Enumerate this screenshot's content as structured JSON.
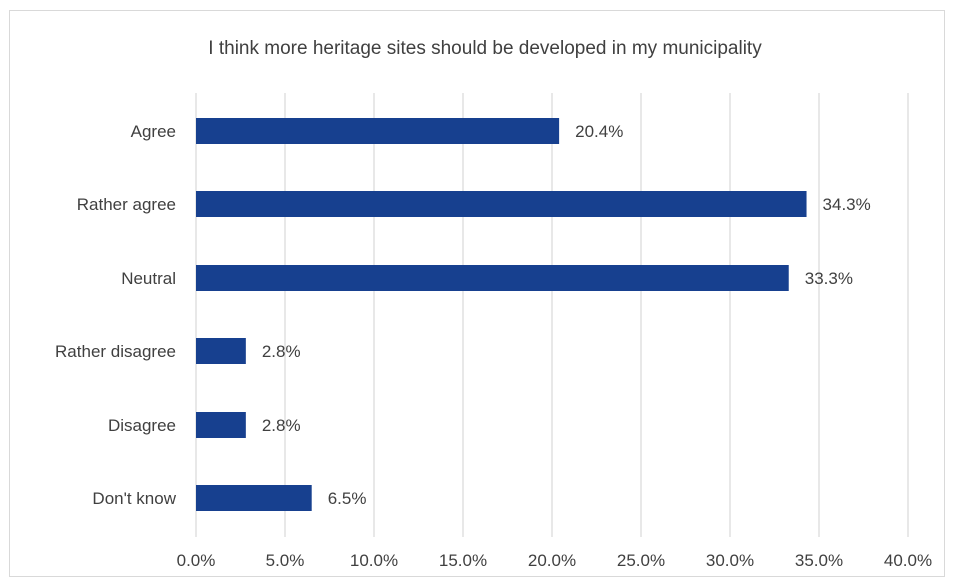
{
  "chart_data": {
    "type": "bar",
    "orientation": "horizontal",
    "title": "I think more heritage sites should be developed in my municipality",
    "categories": [
      "Agree",
      "Rather agree",
      "Neutral",
      "Rather disagree",
      "Disagree",
      "Don't know"
    ],
    "values": [
      20.4,
      34.3,
      33.3,
      2.8,
      2.8,
      6.5
    ],
    "value_labels": [
      "20.4%",
      "34.3%",
      "33.3%",
      "2.8%",
      "2.8%",
      "6.5%"
    ],
    "xlim": [
      0,
      40
    ],
    "x_ticks": [
      0,
      5,
      10,
      15,
      20,
      25,
      30,
      35,
      40
    ],
    "x_tick_labels": [
      "0.0%",
      "5.0%",
      "10.0%",
      "15.0%",
      "20.0%",
      "25.0%",
      "30.0%",
      "35.0%",
      "40.0%"
    ],
    "xlabel": "",
    "ylabel": "",
    "grid": true,
    "legend": "none",
    "bar_color": "#17408f"
  }
}
